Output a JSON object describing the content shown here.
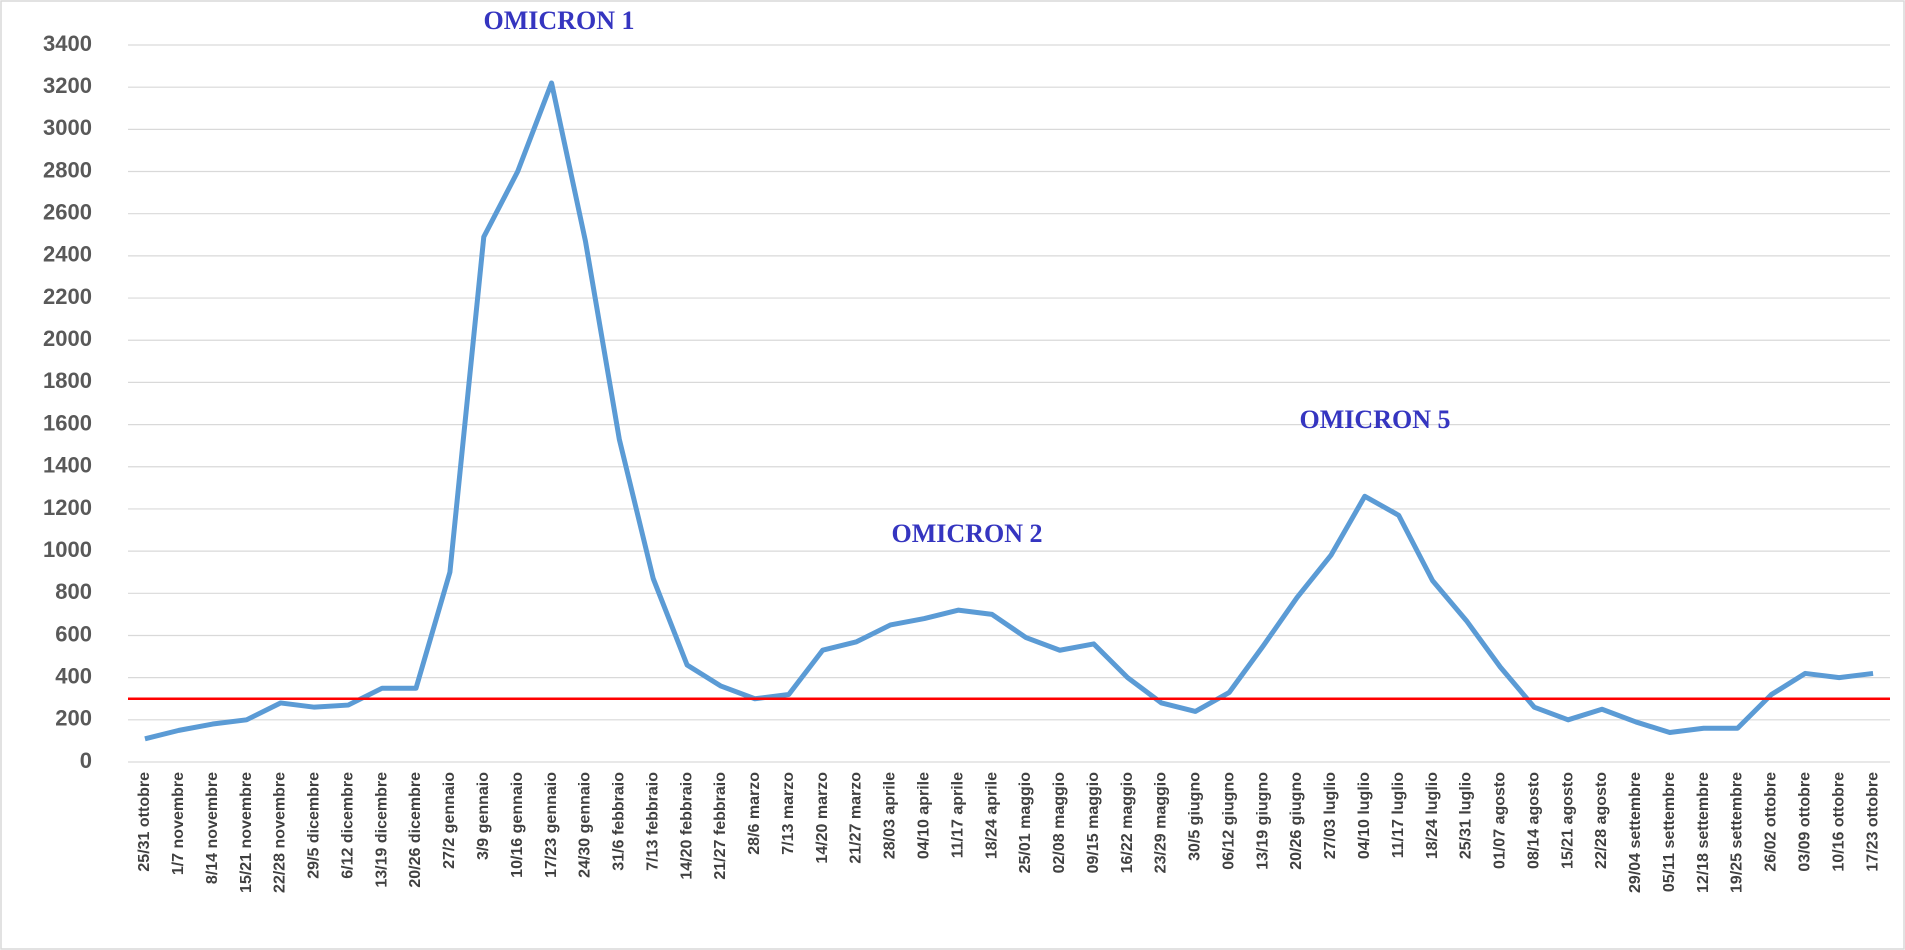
{
  "chart_data": {
    "type": "line",
    "categories": [
      "25/31 ottobre",
      "1/7 novembre",
      "8/14 novembre",
      "15/21 novembre",
      "22/28 novembre",
      "29/5 dicembre",
      "6/12 dicembre",
      "13/19 dicembre",
      "20/26 dicembre",
      "27/2 gennaio",
      "3/9 gennaio",
      "10/16 gennaio",
      "17/23 gennaio",
      "24/30 gennaio",
      "31/6 febbraio",
      "7/13 febbraio",
      "14/20 febbraio",
      "21/27 febbraio",
      "28/6 marzo",
      "7/13 marzo",
      "14/20 marzo",
      "21/27 marzo",
      "28/03 aprile",
      "04/10 aprile",
      "11/17 aprile",
      "18/24 aprile",
      "25/01 maggio",
      "02/08 maggio",
      "09/15 maggio",
      "16/22 maggio",
      "23/29 maggio",
      "30/5 giugno",
      "06/12 giugno",
      "13/19 giugno",
      "20/26 giugno",
      "27/03 luglio",
      "04/10 luglio",
      "11/17 luglio",
      "18/24 luglio",
      "25/31 luglio",
      "01/07 agosto",
      "08/14 agosto",
      "15/21 agosto",
      "22/28 agosto",
      "29/04 settembre",
      "05/11 settembre",
      "12/18 settembre",
      "19/25 settembre",
      "26/02 ottobre",
      "03/09 ottobre",
      "10/16 ottobre",
      "17/23 ottobre"
    ],
    "series": [
      {
        "color": "#5b9bd5",
        "values": [
          110,
          150,
          180,
          200,
          280,
          260,
          270,
          350,
          350,
          900,
          2490,
          2800,
          3220,
          2470,
          1530,
          870,
          460,
          360,
          300,
          320,
          530,
          570,
          650,
          680,
          720,
          700,
          590,
          530,
          560,
          400,
          280,
          240,
          330,
          550,
          780,
          980,
          1260,
          1170,
          860,
          670,
          450,
          260,
          200,
          250,
          190,
          140,
          160,
          160,
          320,
          420,
          400,
          420
        ]
      }
    ],
    "reference_line": {
      "value": 300,
      "color": "#ff0000"
    },
    "annotations": [
      "OMICRON 1",
      "OMICRON 2",
      "OMICRON 5"
    ],
    "ylim": [
      0,
      3400
    ],
    "yticks": [
      0,
      200,
      400,
      600,
      800,
      1000,
      1200,
      1400,
      1600,
      1800,
      2000,
      2200,
      2400,
      2600,
      2800,
      3000,
      3200,
      3400
    ],
    "grid": true
  }
}
